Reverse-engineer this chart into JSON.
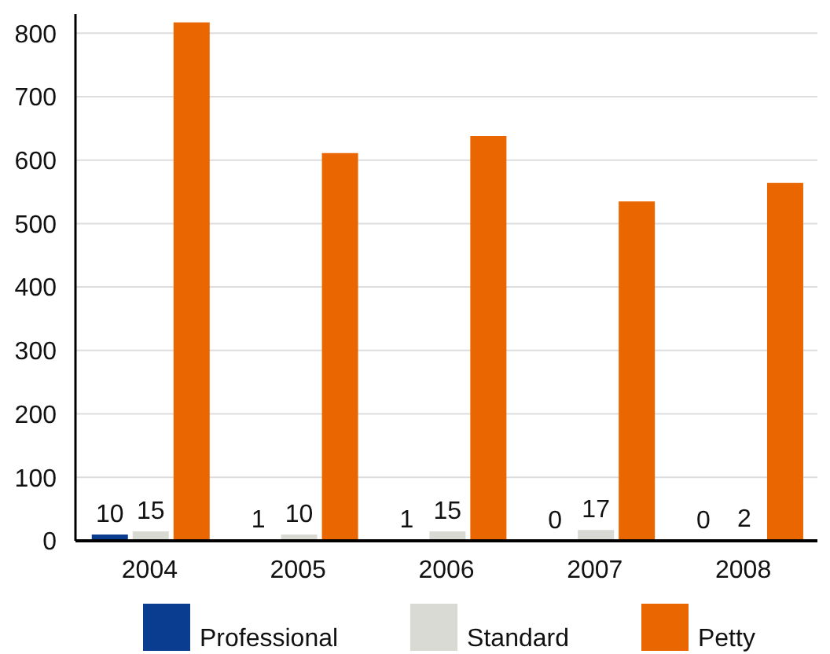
{
  "chart_data": {
    "type": "bar",
    "categories": [
      "2004",
      "2005",
      "2006",
      "2007",
      "2008"
    ],
    "series": [
      {
        "name": "Professional",
        "color": "#0a3d8f",
        "values": [
          10,
          1,
          1,
          0,
          0
        ],
        "value_labels": [
          "10",
          "1",
          "1",
          "0",
          "0"
        ]
      },
      {
        "name": "Standard",
        "color": "#d9dad4",
        "values": [
          15,
          10,
          15,
          17,
          2
        ],
        "value_labels": [
          "15",
          "10",
          "15",
          "17",
          "2"
        ]
      },
      {
        "name": "Petty",
        "color": "#e96600",
        "values": [
          817,
          611,
          638,
          535,
          564
        ]
      }
    ],
    "ylim": [
      0,
      830
    ],
    "yticks": [
      0,
      100,
      200,
      300,
      400,
      500,
      600,
      700,
      800
    ],
    "grid": "y",
    "legend": "bottom"
  }
}
